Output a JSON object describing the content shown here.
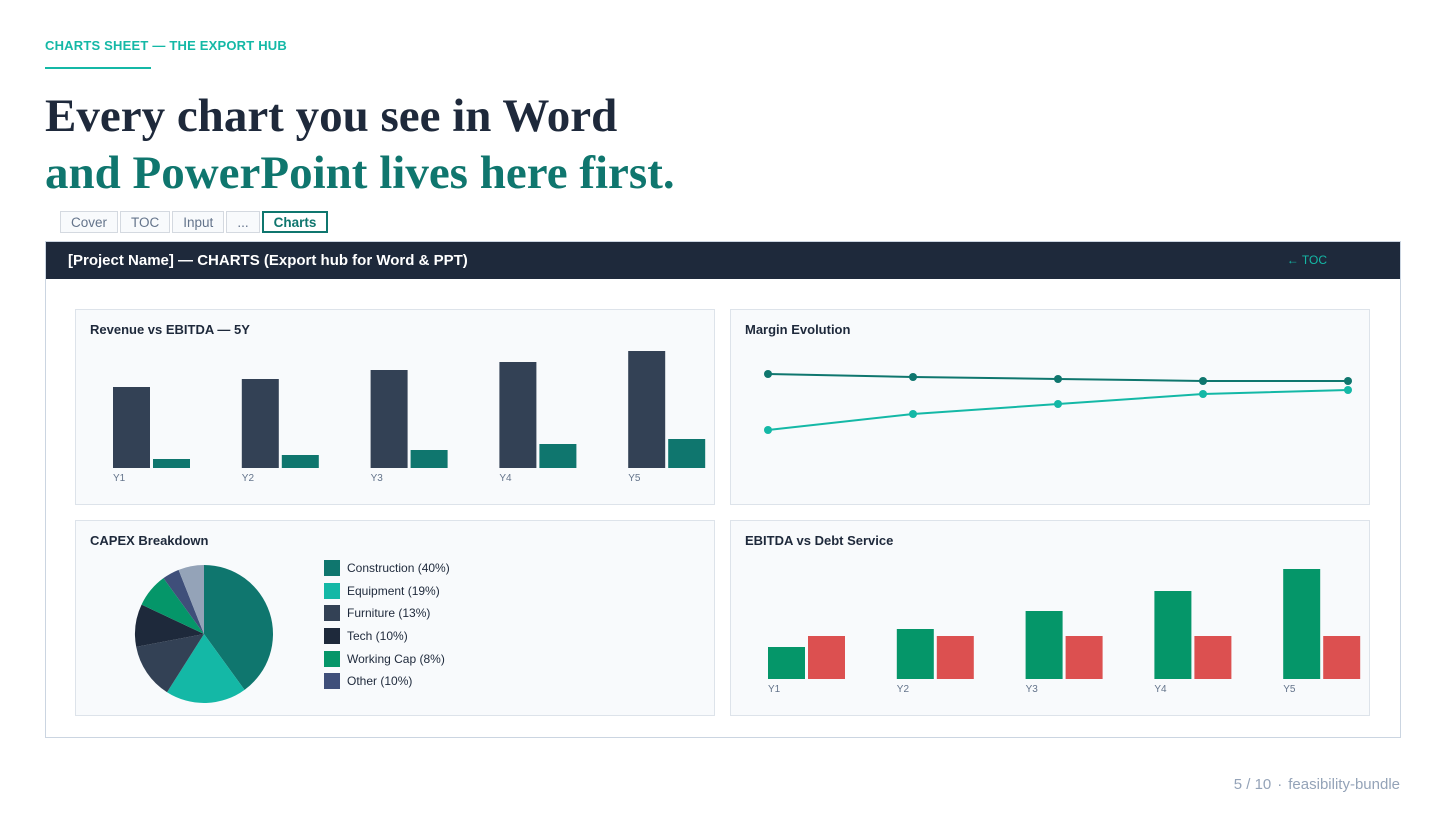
{
  "header": {
    "kicker": "CHARTS SHEET — THE EXPORT HUB",
    "headline_line1": "Every chart you see in Word",
    "headline_line2": "and PowerPoint lives here first."
  },
  "tabs": [
    {
      "label": "Cover",
      "active": false
    },
    {
      "label": "TOC",
      "active": false
    },
    {
      "label": "Input",
      "active": false
    },
    {
      "label": "...",
      "active": false
    },
    {
      "label": "Charts",
      "active": true
    }
  ],
  "sheet": {
    "title": "[Project Name] — CHARTS (Export hub for Word & PPT)",
    "toc_link": "← TOC"
  },
  "colors": {
    "navy": "#334155",
    "teal_dark": "#0f766e",
    "teal_light": "#14b8a6",
    "green": "#059669",
    "red": "#dc5050"
  },
  "chart_data": [
    {
      "type": "bar",
      "title": "Revenue vs EBITDA — 5Y",
      "categories": [
        "Y1",
        "Y2",
        "Y3",
        "Y4",
        "Y5"
      ],
      "series": [
        {
          "values": [
            81,
            89,
            98,
            106,
            117
          ],
          "color": "#334155"
        },
        {
          "values": [
            9,
            13,
            18,
            24,
            29
          ],
          "color": "#0f766e"
        }
      ],
      "ylim": [
        0,
        120
      ]
    },
    {
      "type": "line",
      "title": "Margin Evolution",
      "categories": [
        "Y1",
        "Y2",
        "Y3",
        "Y4",
        "Y5"
      ],
      "series": [
        {
          "values": [
            88,
            86.5,
            85.5,
            84.5,
            84.5
          ],
          "color": "#0f766e"
        },
        {
          "values": [
            60,
            68,
            73,
            78,
            80
          ],
          "color": "#14b8a6"
        }
      ],
      "ylim": [
        40,
        100
      ]
    },
    {
      "type": "pie",
      "title": "CAPEX Breakdown",
      "slices": [
        {
          "label": "Construction (40%)",
          "value": 40,
          "color": "#0f766e"
        },
        {
          "label": "Equipment (19%)",
          "value": 19,
          "color": "#14b8a6"
        },
        {
          "label": "Furniture (13%)",
          "value": 13,
          "color": "#334155"
        },
        {
          "label": "Tech (10%)",
          "value": 10,
          "color": "#1e293b"
        },
        {
          "label": "Working Cap (8%)",
          "value": 8,
          "color": "#059669"
        },
        {
          "label": "Other (10%)",
          "value": 10,
          "color": "#3f4f7a"
        }
      ],
      "extra_slices": [
        {
          "value": 4,
          "color": "#3f4f7a"
        },
        {
          "value": 6,
          "color": "#94a3b8"
        }
      ]
    },
    {
      "type": "bar",
      "title": "EBITDA vs Debt Service",
      "categories": [
        "Y1",
        "Y2",
        "Y3",
        "Y4",
        "Y5"
      ],
      "series": [
        {
          "values": [
            32,
            50,
            68,
            88,
            110
          ],
          "color": "#059669"
        },
        {
          "values": [
            43,
            43,
            43,
            43,
            43
          ],
          "color": "#dc5050"
        }
      ],
      "ylim": [
        0,
        120
      ]
    }
  ],
  "footer": {
    "page": "5 / 10",
    "separator": "·",
    "bundle": "feasibility-bundle"
  }
}
